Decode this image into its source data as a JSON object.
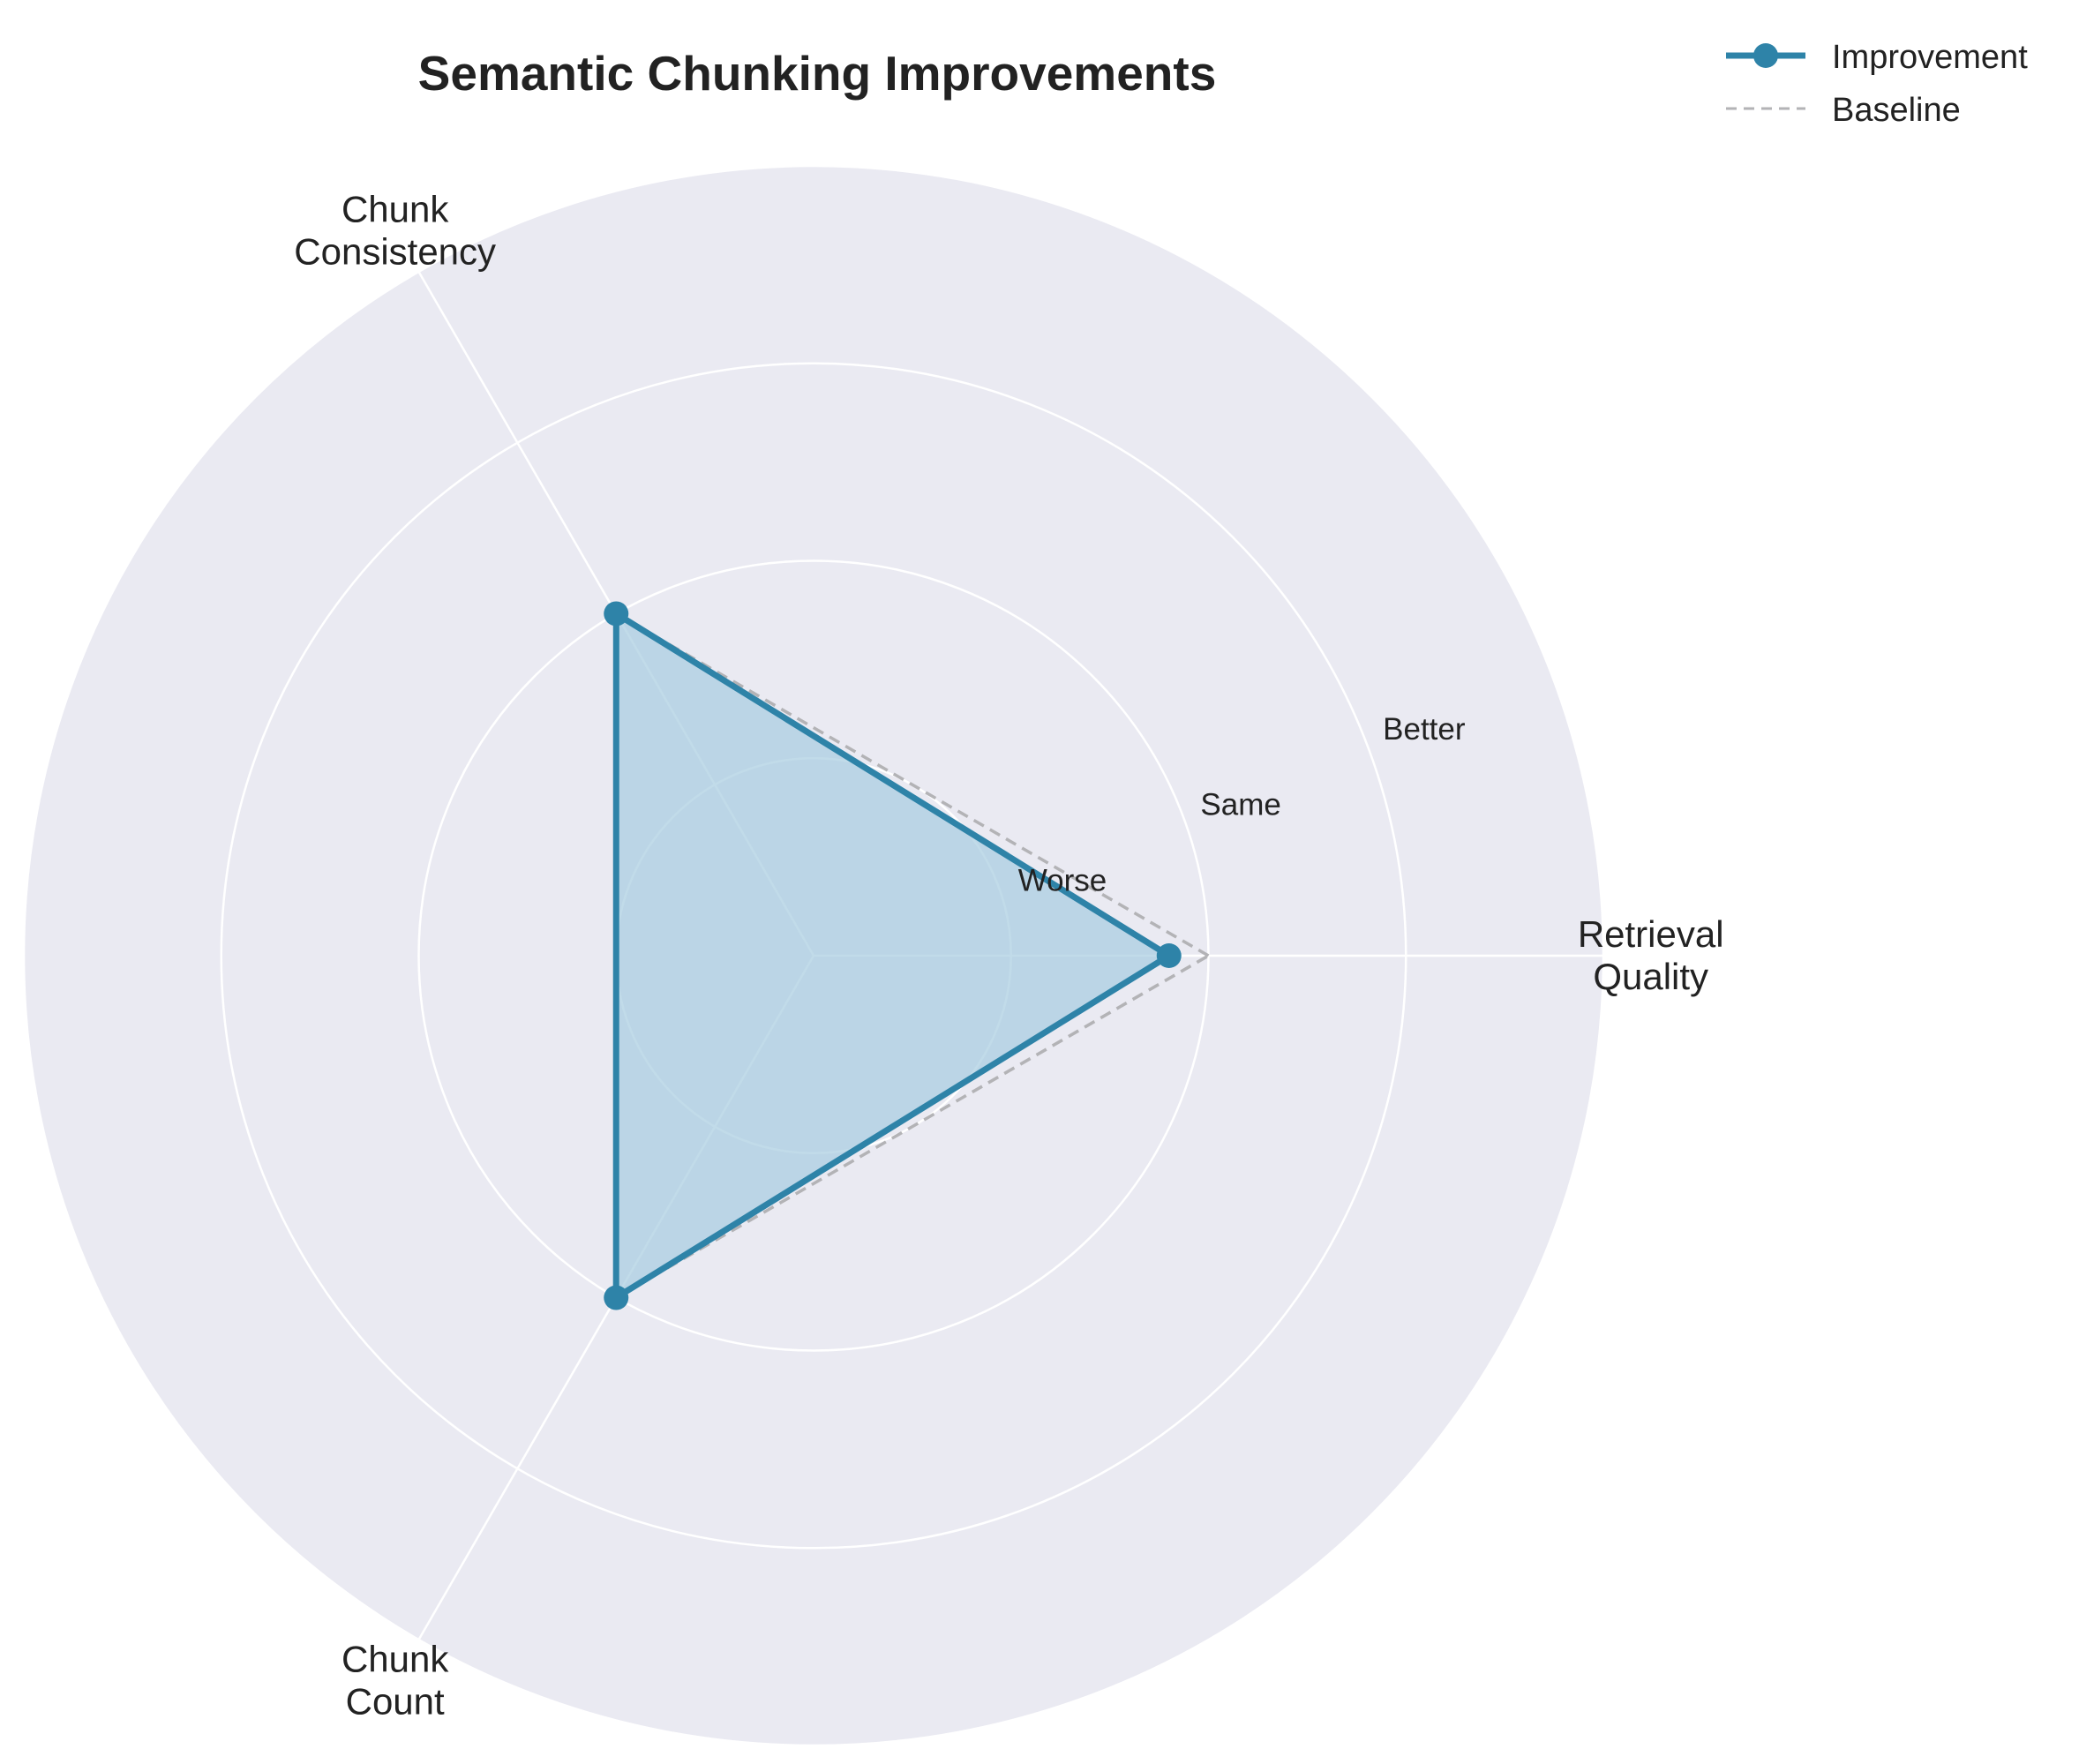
{
  "chart_data": {
    "type": "radar",
    "title": "Semantic Chunking Improvements",
    "axes": [
      {
        "label_lines": [
          "Retrieval",
          "Quality"
        ]
      },
      {
        "label_lines": [
          "Chunk",
          "Consistency"
        ]
      },
      {
        "label_lines": [
          "Chunk",
          "Count"
        ]
      }
    ],
    "radial_range": [
      0,
      4
    ],
    "radial_ticks": [
      {
        "value": 1,
        "label": "Worse"
      },
      {
        "value": 2,
        "label": "Same"
      },
      {
        "value": 3,
        "label": "Better"
      }
    ],
    "series": [
      {
        "name": "Improvement",
        "values": [
          1.8,
          2.0,
          2.0
        ],
        "color": "#2e83a8",
        "fill": "#a9cde0",
        "style": "solid-markers"
      },
      {
        "name": "Baseline",
        "values": [
          2.0,
          2.0,
          2.0
        ],
        "color": "#b3b3b6",
        "style": "dashed"
      }
    ],
    "grid": true,
    "background_color": "#eaeaf2",
    "legend_position": "top-right"
  }
}
